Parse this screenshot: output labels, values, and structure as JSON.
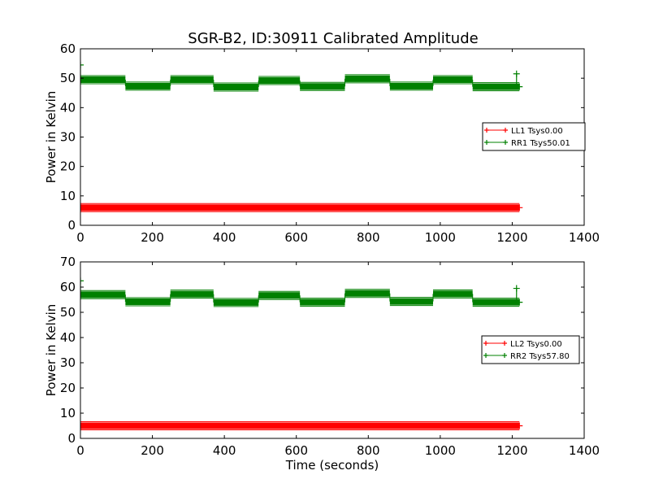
{
  "figure": {
    "title": "SGR-B2, ID:30911 Calibrated Amplitude"
  },
  "chart_data": [
    {
      "type": "line",
      "title": "SGR-B2, ID:30911 Calibrated Amplitude",
      "xlabel": "",
      "ylabel": "Power in Kelvin",
      "xlim": [
        0,
        1400
      ],
      "ylim": [
        0,
        60
      ],
      "xticks": [
        0,
        200,
        400,
        600,
        800,
        1000,
        1200,
        1400
      ],
      "yticks": [
        0,
        10,
        20,
        30,
        40,
        50,
        60
      ],
      "xtick_labels": [
        "0",
        "200",
        "400",
        "600",
        "800",
        "1000",
        "1200",
        "1400"
      ],
      "ytick_labels": [
        "0",
        "10",
        "20",
        "30",
        "40",
        "50",
        "60"
      ],
      "grid": false,
      "legend_placement": "center-right",
      "series": [
        {
          "name": "LL1 Tsys0.00",
          "color": "#ff0000",
          "marker": "+",
          "segments": [
            {
              "x_start": 0,
              "x_end": 1220,
              "value": 6.0
            }
          ]
        },
        {
          "name": "RR1 Tsys50.01",
          "color": "#008000",
          "marker": "+",
          "spikes": [
            {
              "x": 0,
              "value": 54.5
            },
            {
              "x": 1212,
              "value": 51.5
            }
          ],
          "segments": [
            {
              "x_start": 0,
              "x_end": 125,
              "value": 49.5
            },
            {
              "x_start": 125,
              "x_end": 250,
              "value": 47.3
            },
            {
              "x_start": 250,
              "x_end": 370,
              "value": 49.5
            },
            {
              "x_start": 370,
              "x_end": 495,
              "value": 47.0
            },
            {
              "x_start": 495,
              "x_end": 610,
              "value": 49.2
            },
            {
              "x_start": 610,
              "x_end": 735,
              "value": 47.2
            },
            {
              "x_start": 735,
              "x_end": 860,
              "value": 49.8
            },
            {
              "x_start": 860,
              "x_end": 980,
              "value": 47.3
            },
            {
              "x_start": 980,
              "x_end": 1090,
              "value": 49.5
            },
            {
              "x_start": 1090,
              "x_end": 1220,
              "value": 47.1
            }
          ]
        }
      ]
    },
    {
      "type": "line",
      "title": "",
      "xlabel": "Time (seconds)",
      "ylabel": "Power in Kelvin",
      "xlim": [
        0,
        1400
      ],
      "ylim": [
        0,
        70
      ],
      "xticks": [
        0,
        200,
        400,
        600,
        800,
        1000,
        1200,
        1400
      ],
      "yticks": [
        0,
        10,
        20,
        30,
        40,
        50,
        60,
        70
      ],
      "xtick_labels": [
        "0",
        "200",
        "400",
        "600",
        "800",
        "1000",
        "1200",
        "1400"
      ],
      "ytick_labels": [
        "0",
        "10",
        "20",
        "30",
        "40",
        "50",
        "60",
        "70"
      ],
      "grid": false,
      "legend_placement": "center-right",
      "series": [
        {
          "name": "LL2 Tsys0.00",
          "color": "#ff0000",
          "marker": "+",
          "segments": [
            {
              "x_start": 0,
              "x_end": 1220,
              "value": 5.0
            }
          ]
        },
        {
          "name": "RR2 Tsys57.80",
          "color": "#008000",
          "marker": "+",
          "spikes": [
            {
              "x": 0,
              "value": 62.5
            },
            {
              "x": 1212,
              "value": 59.5
            }
          ],
          "segments": [
            {
              "x_start": 0,
              "x_end": 125,
              "value": 57.0
            },
            {
              "x_start": 125,
              "x_end": 250,
              "value": 54.2
            },
            {
              "x_start": 250,
              "x_end": 370,
              "value": 57.2
            },
            {
              "x_start": 370,
              "x_end": 495,
              "value": 53.9
            },
            {
              "x_start": 495,
              "x_end": 610,
              "value": 56.7
            },
            {
              "x_start": 610,
              "x_end": 735,
              "value": 54.0
            },
            {
              "x_start": 735,
              "x_end": 860,
              "value": 57.5
            },
            {
              "x_start": 860,
              "x_end": 980,
              "value": 54.3
            },
            {
              "x_start": 980,
              "x_end": 1090,
              "value": 57.3
            },
            {
              "x_start": 1090,
              "x_end": 1220,
              "value": 54.0
            }
          ]
        }
      ]
    }
  ]
}
